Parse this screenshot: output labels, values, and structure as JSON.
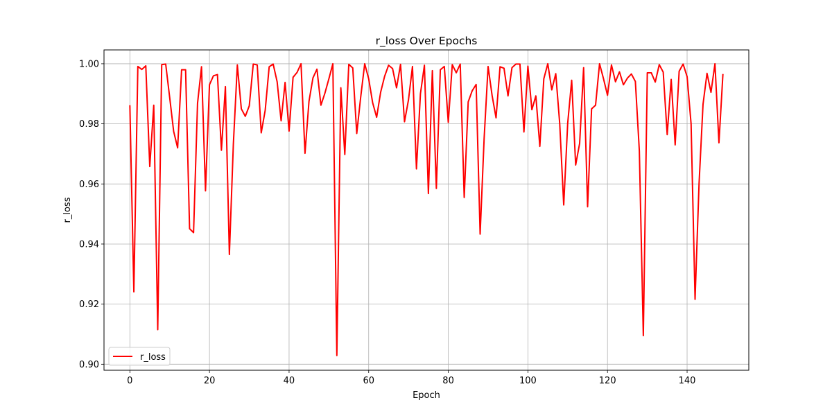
{
  "chart_data": {
    "type": "line",
    "title": "r_loss Over Epochs",
    "xlabel": "Epoch",
    "ylabel": "r_loss",
    "xlim": [
      -6.5,
      155.5
    ],
    "ylim": [
      0.898,
      1.0046
    ],
    "xticks": [
      0,
      20,
      40,
      60,
      80,
      100,
      120,
      140
    ],
    "yticks": [
      0.9,
      0.92,
      0.94,
      0.96,
      0.98,
      1.0
    ],
    "ytick_labels": [
      "0.90",
      "0.92",
      "0.94",
      "0.96",
      "0.98",
      "1.00"
    ],
    "grid": true,
    "legend_position": "lower-left",
    "series": [
      {
        "name": "r_loss",
        "color": "#ff0000",
        "x_start": 0,
        "values": [
          0.9862,
          0.9241,
          0.9991,
          0.9981,
          0.9993,
          0.9658,
          0.9862,
          0.9115,
          0.9997,
          0.9999,
          0.9888,
          0.9775,
          0.972,
          0.998,
          0.998,
          0.9451,
          0.9438,
          0.9868,
          0.999,
          0.9577,
          0.993,
          0.996,
          0.9964,
          0.9712,
          0.9924,
          0.9365,
          0.9732,
          0.9996,
          0.985,
          0.9825,
          0.986,
          0.9999,
          0.9996,
          0.977,
          0.9845,
          0.999,
          0.9999,
          0.994,
          0.981,
          0.9938,
          0.9776,
          0.9955,
          0.9971,
          1.0,
          0.9702,
          0.9875,
          0.9953,
          0.9982,
          0.9862,
          0.9902,
          0.995,
          1.0,
          0.9029,
          0.992,
          0.9698,
          0.9998,
          0.9986,
          0.9768,
          0.989,
          1.0,
          0.995,
          0.987,
          0.9822,
          0.9905,
          0.9958,
          0.9995,
          0.9984,
          0.992,
          0.9998,
          0.9807,
          0.988,
          0.9991,
          0.965,
          0.99,
          0.9995,
          0.9568,
          0.9977,
          0.9585,
          0.998,
          0.9991,
          0.9805,
          0.9997,
          0.997,
          0.9999,
          0.9555,
          0.9873,
          0.991,
          0.9931,
          0.9433,
          0.975,
          0.9991,
          0.9895,
          0.982,
          0.999,
          0.9985,
          0.9893,
          0.9987,
          0.9999,
          0.9999,
          0.9773,
          0.9992,
          0.9847,
          0.9893,
          0.9725,
          0.995,
          1.0,
          0.9913,
          0.9967,
          0.98,
          0.953,
          0.9802,
          0.9945,
          0.9663,
          0.9735,
          0.9987,
          0.9524,
          0.985,
          0.9862,
          1.0,
          0.995,
          0.9895,
          0.9996,
          0.994,
          0.9973,
          0.993,
          0.9952,
          0.9966,
          0.9941,
          0.971,
          0.9095,
          0.997,
          0.997,
          0.9939,
          0.9997,
          0.9972,
          0.9764,
          0.9948,
          0.973,
          0.9975,
          0.9999,
          0.9957,
          0.98,
          0.9216,
          0.96,
          0.9865,
          0.9968,
          0.9905,
          1.0,
          0.9737,
          0.9966
        ]
      }
    ]
  }
}
